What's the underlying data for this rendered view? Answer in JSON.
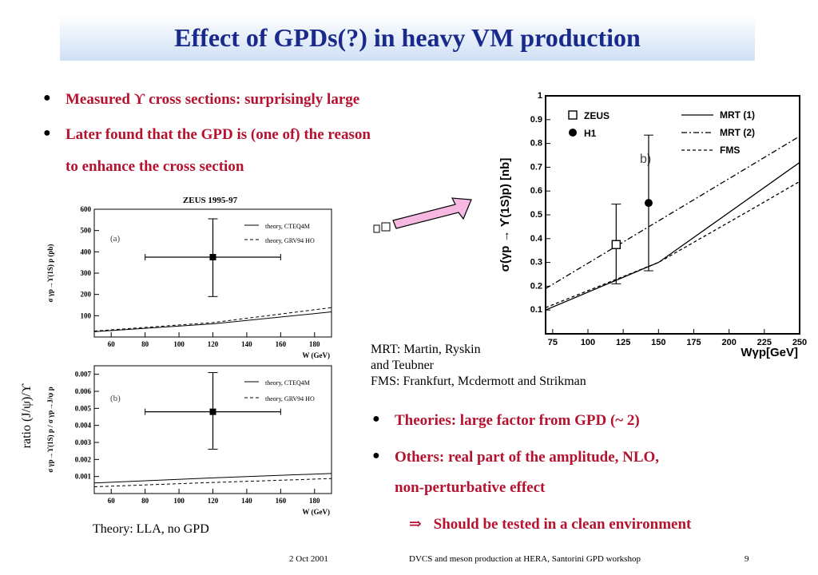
{
  "title": "Effect of GPDs(?) in heavy VM production",
  "bullets_top": [
    "Measured ϒ cross sections: surprisingly large",
    "Later found that the GPD is (one of) the reason",
    "to enhance the cross section"
  ],
  "captions": {
    "mrt": "MRT: Martin, Ryskin",
    "mrt2": "and Teubner",
    "fms": "FMS: Frankfurt, Mcdermott and Strikman",
    "theory_lla": "Theory: LLA, no GPD",
    "ratio_label": "ratio (J/ψ)/ϒ"
  },
  "bullets_bottom": [
    "Theories: large factor from GPD (~ 2)",
    "Others: real part of the amplitude, NLO,",
    "non-perturbative effect"
  ],
  "implication": "Should be tested in a clean environment",
  "implication_symbol": "⇒",
  "footer": {
    "date": "2 Oct 2001",
    "event": "DVCS and meson production at HERA, Santorini GPD workshop",
    "page": "9"
  },
  "colors": {
    "title": "#1a2a8a",
    "bullet": "#b5122f",
    "arrow": "#f6b8e0"
  },
  "chart_data": [
    {
      "type": "line",
      "title": "ZEUS 1995-97",
      "panel_label": "(a)",
      "xlabel": "W (GeV)",
      "ylabel": "σ γp→ϒ(1S) p (pb)",
      "xlim": [
        50,
        190
      ],
      "ylim": [
        0,
        600
      ],
      "xticks": [
        "60",
        "80",
        "100",
        "120",
        "140",
        "160",
        "180"
      ],
      "yticks": [
        "100",
        "200",
        "300",
        "400",
        "500",
        "600"
      ],
      "series": [
        {
          "name": "theory, CTEQ4M",
          "style": "solid",
          "x": [
            50,
            120,
            190
          ],
          "y": [
            25,
            62,
            118
          ]
        },
        {
          "name": "theory, GRV94 HO",
          "style": "dashed",
          "x": [
            50,
            120,
            190
          ],
          "y": [
            28,
            68,
            138
          ]
        }
      ],
      "points": [
        {
          "x": 120,
          "y": 375,
          "xerr": [
            80,
            160
          ],
          "yerr": [
            190,
            555
          ]
        }
      ]
    },
    {
      "type": "line",
      "panel_label": "(b)",
      "xlabel": "W (GeV)",
      "ylabel": "σ γp→ϒ(1S) p / σ γp→J/ψ p",
      "xlim": [
        50,
        190
      ],
      "ylim": [
        0,
        0.0075
      ],
      "xticks": [
        "60",
        "80",
        "100",
        "120",
        "140",
        "160",
        "180"
      ],
      "yticks": [
        "0.001",
        "0.002",
        "0.003",
        "0.004",
        "0.005",
        "0.006",
        "0.007"
      ],
      "series": [
        {
          "name": "theory, CTEQ4M",
          "style": "solid",
          "x": [
            50,
            120,
            190
          ],
          "y": [
            0.00062,
            0.00092,
            0.00118
          ]
        },
        {
          "name": "theory, GRV94 HO",
          "style": "dashed",
          "x": [
            50,
            120,
            190
          ],
          "y": [
            0.0004,
            0.00065,
            0.00088
          ]
        }
      ],
      "points": [
        {
          "x": 120,
          "y": 0.0048,
          "xerr": [
            80,
            160
          ],
          "yerr": [
            0.0026,
            0.0071
          ]
        }
      ]
    },
    {
      "type": "line",
      "panel_label": "b)",
      "xlabel": "Wγp[GeV]",
      "ylabel": "σ(γp → ϒ(1S)p) [nb]",
      "xlim": [
        70,
        250
      ],
      "ylim": [
        0,
        1
      ],
      "xticks": [
        "75",
        "100",
        "125",
        "150",
        "175",
        "200",
        "225",
        "250"
      ],
      "yticks": [
        "0.1",
        "0.2",
        "0.3",
        "0.4",
        "0.5",
        "0.6",
        "0.7",
        "0.8",
        "0.9",
        "1"
      ],
      "series": [
        {
          "name": "MRT (1)",
          "style": "solid",
          "x": [
            70,
            150,
            250
          ],
          "y": [
            0.1,
            0.3,
            0.72
          ]
        },
        {
          "name": "MRT (2)",
          "style": "dashdot",
          "x": [
            70,
            250
          ],
          "y": [
            0.19,
            0.83
          ]
        },
        {
          "name": "FMS",
          "style": "dashed",
          "x": [
            70,
            150,
            215,
            250
          ],
          "y": [
            0.11,
            0.3,
            0.52,
            0.64
          ]
        }
      ],
      "points": [
        {
          "name": "ZEUS",
          "marker": "open-square",
          "x": 120,
          "y": 0.375,
          "yerr": [
            0.21,
            0.545
          ]
        },
        {
          "name": "H1",
          "marker": "filled-circle",
          "x": 143,
          "y": 0.55,
          "yerr": [
            0.265,
            0.835
          ]
        }
      ]
    }
  ]
}
